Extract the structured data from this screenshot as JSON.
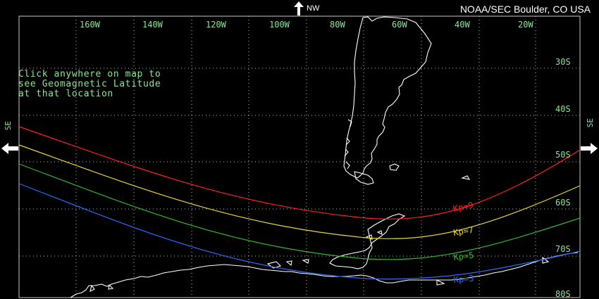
{
  "header": {
    "credit": "NOAA/SEC Boulder, CO USA"
  },
  "nav": {
    "top_label": "NW",
    "left_label": "SE",
    "right_label": "SE"
  },
  "hint": {
    "lines": [
      "Click anywhere on map to",
      "see Geomagnetic Latitude",
      "at that location"
    ]
  },
  "grid": {
    "longitude_labels": [
      "160W",
      "140W",
      "120W",
      "100W",
      "80W",
      "60W",
      "40W",
      "20W"
    ],
    "latitude_labels": [
      "30S",
      "40S",
      "50S",
      "60S",
      "70S",
      "80S"
    ]
  },
  "curves": [
    {
      "label": "Kp=9",
      "color": "#ff2020"
    },
    {
      "label": "Kp=7",
      "color": "#e8d13a"
    },
    {
      "label": "Kp=5",
      "color": "#33b533"
    },
    {
      "label": "Kp=3",
      "color": "#2f6bff"
    }
  ],
  "colors": {
    "grid": "#c0c0c0",
    "label": "#8fe39a",
    "coast": "#ffffff"
  }
}
